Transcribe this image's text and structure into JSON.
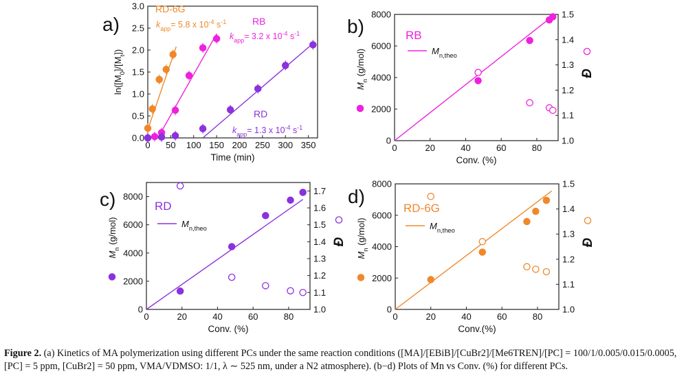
{
  "caption": {
    "label": "Figure 2.",
    "text": "(a) Kinetics of MA polymerization using different PCs under the same reaction conditions ([MA]/[EBiB]/[CuBr2]/[Me6TREN]/[PC] = 100/1/0.005/0.015/0.0005, [PC] = 5 ppm, [CuBr2] = 50 ppm, VMA/VDMSO: 1/1, λ ∼ 525 nm, under a N2 atmosphere). (b−d) Plots of Mn vs Conv. (%) for different PCs."
  },
  "chart_data": [
    {
      "panel": "a)",
      "type": "scatter",
      "xlabel": "Time (min)",
      "ylabel": "ln([M0]/[Mt])",
      "xlim": [
        0,
        370
      ],
      "ylim": [
        0,
        3.0
      ],
      "xticks": [
        "0",
        "50",
        "100",
        "150",
        "200",
        "250",
        "300",
        "350"
      ],
      "yticks": [
        "0.0",
        "0.5",
        "1.0",
        "1.5",
        "2.0",
        "2.5",
        "3.0"
      ],
      "series": [
        {
          "name": "RD-6G",
          "color": "#f0882a",
          "annotation": "kapp = 5.8 x 10-4 s-1",
          "x": [
            0,
            10,
            25,
            40,
            55
          ],
          "y": [
            0.22,
            0.66,
            1.33,
            1.56,
            1.9
          ],
          "fit": [
            [
              2,
              0.25
            ],
            [
              62,
              2.08
            ]
          ]
        },
        {
          "name": "RB",
          "color": "#ee22dd",
          "annotation": "kapp = 3.2 x 10-4 s-1",
          "x": [
            0,
            15,
            30,
            60,
            90,
            120,
            150
          ],
          "y": [
            0.0,
            0.03,
            0.12,
            0.63,
            1.42,
            2.05,
            2.26
          ],
          "fit": [
            [
              22,
              0.0
            ],
            [
              150,
              2.37
            ]
          ]
        },
        {
          "name": "RD",
          "color": "#8a32dd",
          "annotation": "kapp = 1.3 x 10-4 s-1",
          "x": [
            0,
            30,
            60,
            120,
            180,
            240,
            300,
            360
          ],
          "y": [
            0.0,
            0.02,
            0.05,
            0.21,
            0.64,
            1.12,
            1.65,
            2.12
          ],
          "fit": [
            [
              120,
              0.0
            ],
            [
              360,
              2.15
            ]
          ]
        }
      ]
    },
    {
      "panel": "b)",
      "type": "scatter",
      "legend_title": "RB",
      "fit_label": "Mn,theo",
      "color": "#ee22dd",
      "xlabel": "Conv. (%)",
      "ylabel_left": "Mn (g/mol)",
      "ylabel_right": "Đ",
      "xlim": [
        0,
        92
      ],
      "ylim_left": [
        0,
        8000
      ],
      "ylim_right": [
        1.0,
        1.5
      ],
      "xticks": [
        "0",
        "20",
        "40",
        "60",
        "80"
      ],
      "yticks_left": [
        "0",
        "2000",
        "4000",
        "6000",
        "8000"
      ],
      "yticks_right": [
        "1.0",
        "1.1",
        "1.2",
        "1.3",
        "1.4",
        "1.5"
      ],
      "mn": {
        "x": [
          47,
          76,
          87,
          89
        ],
        "y": [
          3800,
          6350,
          7650,
          7850
        ]
      },
      "dispersity": {
        "x": [
          47,
          76,
          87,
          89
        ],
        "y": [
          1.27,
          1.15,
          1.13,
          1.12
        ]
      },
      "theo_line": [
        [
          0,
          0
        ],
        [
          89,
          7900
        ]
      ]
    },
    {
      "panel": "c)",
      "type": "scatter",
      "legend_title": "RD",
      "fit_label": "Mn,theo",
      "color": "#8a32dd",
      "xlabel": "Conv. (%)",
      "ylabel_left": "Mn (g/mol)",
      "ylabel_right": "Đ",
      "xlim": [
        0,
        92
      ],
      "ylim_left": [
        0,
        9000
      ],
      "ylim_right": [
        1.0,
        1.75
      ],
      "xticks": [
        "0",
        "20",
        "40",
        "60",
        "80"
      ],
      "yticks_left": [
        "0",
        "2000",
        "4000",
        "6000",
        "8000"
      ],
      "yticks_right": [
        "1.0",
        "1.1",
        "1.2",
        "1.3",
        "1.4",
        "1.5",
        "1.6",
        "1.7"
      ],
      "mn": {
        "x": [
          19,
          48,
          67,
          81,
          88
        ],
        "y": [
          1300,
          4450,
          6650,
          7750,
          8300
        ]
      },
      "dispersity": {
        "x": [
          19,
          48,
          67,
          81,
          88
        ],
        "y": [
          1.73,
          1.19,
          1.14,
          1.11,
          1.1
        ]
      },
      "theo_line": [
        [
          0,
          0
        ],
        [
          88,
          7800
        ]
      ]
    },
    {
      "panel": "d)",
      "type": "scatter",
      "legend_title": "RD-6G",
      "fit_label": "Mn,theo",
      "color": "#f0882a",
      "xlabel": "Conv.(%)",
      "ylabel_left": "Mn (g/mol)",
      "ylabel_right": "Đ",
      "xlim": [
        0,
        92
      ],
      "ylim_left": [
        0,
        8000
      ],
      "ylim_right": [
        1.0,
        1.5
      ],
      "xticks": [
        "0",
        "20",
        "40",
        "60",
        "80"
      ],
      "yticks_left": [
        "0",
        "2000",
        "4000",
        "6000",
        "8000"
      ],
      "yticks_right": [
        "1.0",
        "1.1",
        "1.2",
        "1.3",
        "1.4",
        "1.5"
      ],
      "mn": {
        "x": [
          20,
          49,
          74,
          79,
          85
        ],
        "y": [
          1900,
          3650,
          5600,
          6250,
          6950
        ]
      },
      "dispersity": {
        "x": [
          20,
          49,
          74,
          79,
          85
        ],
        "y": [
          1.45,
          1.27,
          1.17,
          1.16,
          1.15
        ]
      },
      "theo_line": [
        [
          0,
          0
        ],
        [
          88,
          7550
        ]
      ]
    }
  ]
}
